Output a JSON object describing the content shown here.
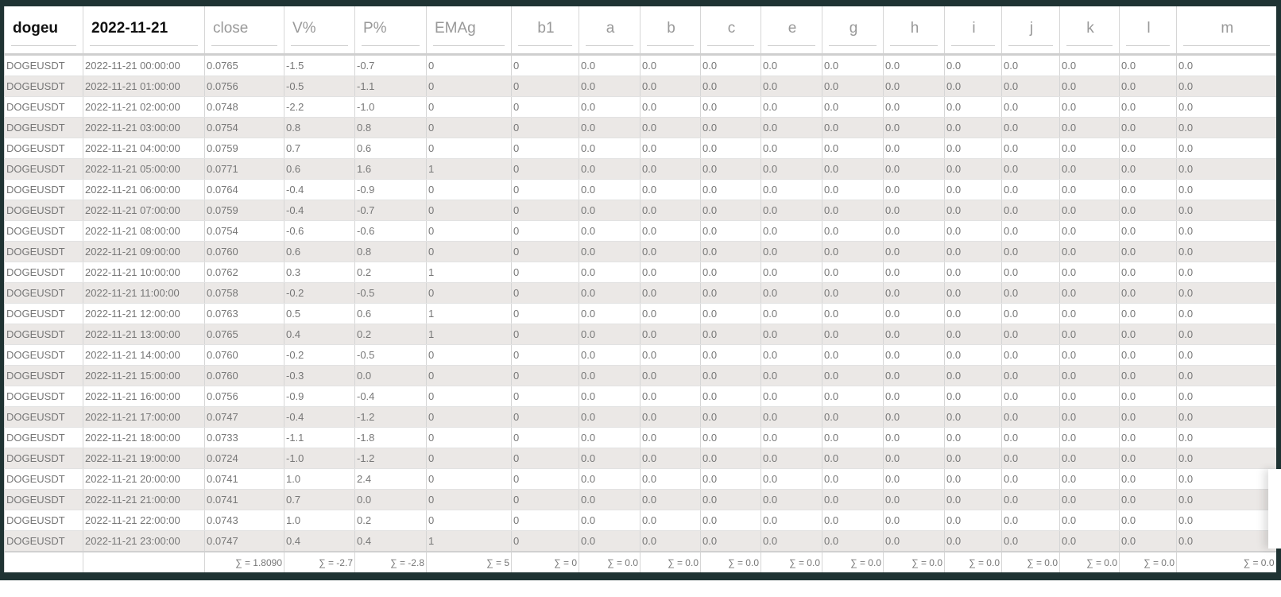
{
  "header": {
    "symbol_value": "dogeu",
    "date_value": "2022-11-21",
    "placeholders": [
      "close",
      "V%",
      "P%",
      "EMAg",
      "b1",
      "a",
      "b",
      "c",
      "e",
      "g",
      "h",
      "i",
      "j",
      "k",
      "l",
      "m"
    ]
  },
  "rows": [
    [
      "DOGEUSDT",
      "2022-11-21 00:00:00",
      "0.0765",
      "-1.5",
      "-0.7",
      "0",
      "0",
      "0.0",
      "0.0",
      "0.0",
      "0.0",
      "0.0",
      "0.0",
      "0.0",
      "0.0",
      "0.0",
      "0.0",
      "0.0"
    ],
    [
      "DOGEUSDT",
      "2022-11-21 01:00:00",
      "0.0756",
      "-0.5",
      "-1.1",
      "0",
      "0",
      "0.0",
      "0.0",
      "0.0",
      "0.0",
      "0.0",
      "0.0",
      "0.0",
      "0.0",
      "0.0",
      "0.0",
      "0.0"
    ],
    [
      "DOGEUSDT",
      "2022-11-21 02:00:00",
      "0.0748",
      "-2.2",
      "-1.0",
      "0",
      "0",
      "0.0",
      "0.0",
      "0.0",
      "0.0",
      "0.0",
      "0.0",
      "0.0",
      "0.0",
      "0.0",
      "0.0",
      "0.0"
    ],
    [
      "DOGEUSDT",
      "2022-11-21 03:00:00",
      "0.0754",
      "0.8",
      "0.8",
      "0",
      "0",
      "0.0",
      "0.0",
      "0.0",
      "0.0",
      "0.0",
      "0.0",
      "0.0",
      "0.0",
      "0.0",
      "0.0",
      "0.0"
    ],
    [
      "DOGEUSDT",
      "2022-11-21 04:00:00",
      "0.0759",
      "0.7",
      "0.6",
      "0",
      "0",
      "0.0",
      "0.0",
      "0.0",
      "0.0",
      "0.0",
      "0.0",
      "0.0",
      "0.0",
      "0.0",
      "0.0",
      "0.0"
    ],
    [
      "DOGEUSDT",
      "2022-11-21 05:00:00",
      "0.0771",
      "0.6",
      "1.6",
      "1",
      "0",
      "0.0",
      "0.0",
      "0.0",
      "0.0",
      "0.0",
      "0.0",
      "0.0",
      "0.0",
      "0.0",
      "0.0",
      "0.0"
    ],
    [
      "DOGEUSDT",
      "2022-11-21 06:00:00",
      "0.0764",
      "-0.4",
      "-0.9",
      "0",
      "0",
      "0.0",
      "0.0",
      "0.0",
      "0.0",
      "0.0",
      "0.0",
      "0.0",
      "0.0",
      "0.0",
      "0.0",
      "0.0"
    ],
    [
      "DOGEUSDT",
      "2022-11-21 07:00:00",
      "0.0759",
      "-0.4",
      "-0.7",
      "0",
      "0",
      "0.0",
      "0.0",
      "0.0",
      "0.0",
      "0.0",
      "0.0",
      "0.0",
      "0.0",
      "0.0",
      "0.0",
      "0.0"
    ],
    [
      "DOGEUSDT",
      "2022-11-21 08:00:00",
      "0.0754",
      "-0.6",
      "-0.6",
      "0",
      "0",
      "0.0",
      "0.0",
      "0.0",
      "0.0",
      "0.0",
      "0.0",
      "0.0",
      "0.0",
      "0.0",
      "0.0",
      "0.0"
    ],
    [
      "DOGEUSDT",
      "2022-11-21 09:00:00",
      "0.0760",
      "0.6",
      "0.8",
      "0",
      "0",
      "0.0",
      "0.0",
      "0.0",
      "0.0",
      "0.0",
      "0.0",
      "0.0",
      "0.0",
      "0.0",
      "0.0",
      "0.0"
    ],
    [
      "DOGEUSDT",
      "2022-11-21 10:00:00",
      "0.0762",
      "0.3",
      "0.2",
      "1",
      "0",
      "0.0",
      "0.0",
      "0.0",
      "0.0",
      "0.0",
      "0.0",
      "0.0",
      "0.0",
      "0.0",
      "0.0",
      "0.0"
    ],
    [
      "DOGEUSDT",
      "2022-11-21 11:00:00",
      "0.0758",
      "-0.2",
      "-0.5",
      "0",
      "0",
      "0.0",
      "0.0",
      "0.0",
      "0.0",
      "0.0",
      "0.0",
      "0.0",
      "0.0",
      "0.0",
      "0.0",
      "0.0"
    ],
    [
      "DOGEUSDT",
      "2022-11-21 12:00:00",
      "0.0763",
      "0.5",
      "0.6",
      "1",
      "0",
      "0.0",
      "0.0",
      "0.0",
      "0.0",
      "0.0",
      "0.0",
      "0.0",
      "0.0",
      "0.0",
      "0.0",
      "0.0"
    ],
    [
      "DOGEUSDT",
      "2022-11-21 13:00:00",
      "0.0765",
      "0.4",
      "0.2",
      "1",
      "0",
      "0.0",
      "0.0",
      "0.0",
      "0.0",
      "0.0",
      "0.0",
      "0.0",
      "0.0",
      "0.0",
      "0.0",
      "0.0"
    ],
    [
      "DOGEUSDT",
      "2022-11-21 14:00:00",
      "0.0760",
      "-0.2",
      "-0.5",
      "0",
      "0",
      "0.0",
      "0.0",
      "0.0",
      "0.0",
      "0.0",
      "0.0",
      "0.0",
      "0.0",
      "0.0",
      "0.0",
      "0.0"
    ],
    [
      "DOGEUSDT",
      "2022-11-21 15:00:00",
      "0.0760",
      "-0.3",
      "0.0",
      "0",
      "0",
      "0.0",
      "0.0",
      "0.0",
      "0.0",
      "0.0",
      "0.0",
      "0.0",
      "0.0",
      "0.0",
      "0.0",
      "0.0"
    ],
    [
      "DOGEUSDT",
      "2022-11-21 16:00:00",
      "0.0756",
      "-0.9",
      "-0.4",
      "0",
      "0",
      "0.0",
      "0.0",
      "0.0",
      "0.0",
      "0.0",
      "0.0",
      "0.0",
      "0.0",
      "0.0",
      "0.0",
      "0.0"
    ],
    [
      "DOGEUSDT",
      "2022-11-21 17:00:00",
      "0.0747",
      "-0.4",
      "-1.2",
      "0",
      "0",
      "0.0",
      "0.0",
      "0.0",
      "0.0",
      "0.0",
      "0.0",
      "0.0",
      "0.0",
      "0.0",
      "0.0",
      "0.0"
    ],
    [
      "DOGEUSDT",
      "2022-11-21 18:00:00",
      "0.0733",
      "-1.1",
      "-1.8",
      "0",
      "0",
      "0.0",
      "0.0",
      "0.0",
      "0.0",
      "0.0",
      "0.0",
      "0.0",
      "0.0",
      "0.0",
      "0.0",
      "0.0"
    ],
    [
      "DOGEUSDT",
      "2022-11-21 19:00:00",
      "0.0724",
      "-1.0",
      "-1.2",
      "0",
      "0",
      "0.0",
      "0.0",
      "0.0",
      "0.0",
      "0.0",
      "0.0",
      "0.0",
      "0.0",
      "0.0",
      "0.0",
      "0.0"
    ],
    [
      "DOGEUSDT",
      "2022-11-21 20:00:00",
      "0.0741",
      "1.0",
      "2.4",
      "0",
      "0",
      "0.0",
      "0.0",
      "0.0",
      "0.0",
      "0.0",
      "0.0",
      "0.0",
      "0.0",
      "0.0",
      "0.0",
      "0.0"
    ],
    [
      "DOGEUSDT",
      "2022-11-21 21:00:00",
      "0.0741",
      "0.7",
      "0.0",
      "0",
      "0",
      "0.0",
      "0.0",
      "0.0",
      "0.0",
      "0.0",
      "0.0",
      "0.0",
      "0.0",
      "0.0",
      "0.0",
      "0.0"
    ],
    [
      "DOGEUSDT",
      "2022-11-21 22:00:00",
      "0.0743",
      "1.0",
      "0.2",
      "0",
      "0",
      "0.0",
      "0.0",
      "0.0",
      "0.0",
      "0.0",
      "0.0",
      "0.0",
      "0.0",
      "0.0",
      "0.0",
      "0.0"
    ],
    [
      "DOGEUSDT",
      "2022-11-21 23:00:00",
      "0.0747",
      "0.4",
      "0.4",
      "1",
      "0",
      "0.0",
      "0.0",
      "0.0",
      "0.0",
      "0.0",
      "0.0",
      "0.0",
      "0.0",
      "0.0",
      "0.0",
      "0.0"
    ]
  ],
  "footer": [
    "",
    "",
    "∑ = 1.8090",
    "∑ = -2.7",
    "∑ = -2.8",
    "∑ = 5",
    "∑ = 0",
    "∑ = 0.0",
    "∑ = 0.0",
    "∑ = 0.0",
    "∑ = 0.0",
    "∑ = 0.0",
    "∑ = 0.0",
    "∑ = 0.0",
    "∑ = 0.0",
    "∑ = 0.0",
    "∑ = 0.0",
    "∑ = 0.0"
  ]
}
